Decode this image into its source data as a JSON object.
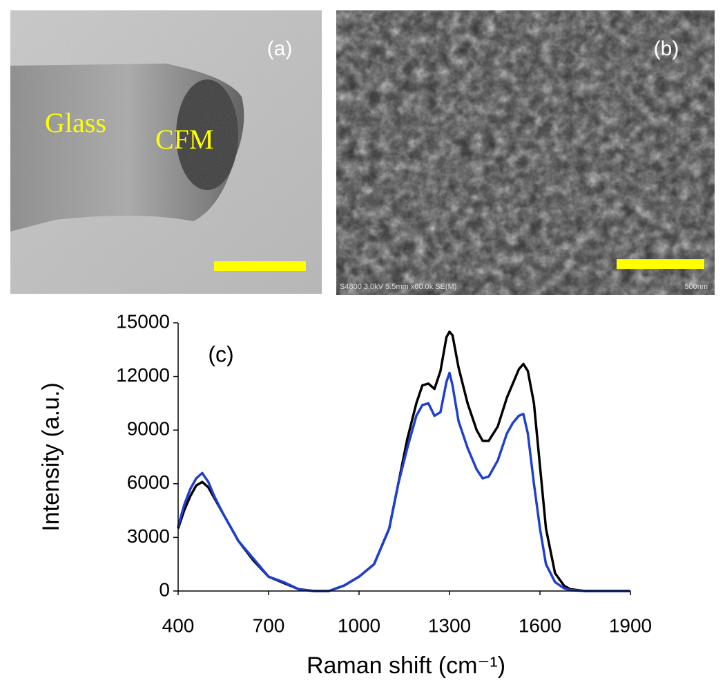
{
  "panels": {
    "a": {
      "label": "(a)",
      "annotations": [
        "Glass",
        "CFM"
      ]
    },
    "b": {
      "label": "(b)",
      "info": "S4800 3.0kV 5.5mm x60.0k SE(M)",
      "scale": "500nm"
    }
  },
  "chart_data": {
    "type": "line",
    "annotation": "(c)",
    "x_label": "Raman shift (cm⁻¹)",
    "y_label": "Intensity (a.u.)",
    "x": [
      400,
      420,
      440,
      460,
      480,
      500,
      520,
      550,
      600,
      650,
      700,
      750,
      800,
      850,
      900,
      950,
      1000,
      1050,
      1100,
      1130,
      1160,
      1190,
      1210,
      1230,
      1250,
      1270,
      1290,
      1300,
      1310,
      1330,
      1360,
      1390,
      1410,
      1430,
      1460,
      1490,
      1510,
      1530,
      1545,
      1560,
      1580,
      1600,
      1620,
      1650,
      1680,
      1700,
      1750,
      1800,
      1900
    ],
    "series": [
      {
        "color": "#000000",
        "values": [
          3500,
          4500,
          5300,
          5900,
          6100,
          5800,
          5200,
          4300,
          2800,
          1700,
          800,
          450,
          100,
          0,
          0,
          300,
          800,
          1500,
          3500,
          6000,
          8500,
          10500,
          11500,
          11600,
          11300,
          12300,
          14200,
          14500,
          14300,
          12500,
          10500,
          9000,
          8400,
          8400,
          9200,
          10800,
          11600,
          12400,
          12700,
          12300,
          10500,
          7000,
          3500,
          1000,
          300,
          100,
          0,
          0,
          0
        ]
      },
      {
        "color": "#1f3fcf",
        "values": [
          3600,
          4800,
          5700,
          6300,
          6600,
          6100,
          5300,
          4300,
          2800,
          1800,
          800,
          500,
          100,
          0,
          0,
          300,
          800,
          1500,
          3500,
          6000,
          8000,
          9800,
          10400,
          10500,
          9800,
          10000,
          11700,
          12200,
          11500,
          9500,
          8000,
          6800,
          6300,
          6400,
          7300,
          8800,
          9400,
          9800,
          9900,
          8800,
          6000,
          3500,
          1500,
          500,
          150,
          50,
          0,
          0,
          0
        ]
      }
    ],
    "xlim": [
      400,
      1900
    ],
    "xticks": [
      400,
      700,
      1000,
      1300,
      1600,
      1900
    ],
    "ylim": [
      0,
      15000
    ],
    "yticks": [
      0,
      3000,
      6000,
      9000,
      12000,
      15000
    ],
    "grid": false
  }
}
